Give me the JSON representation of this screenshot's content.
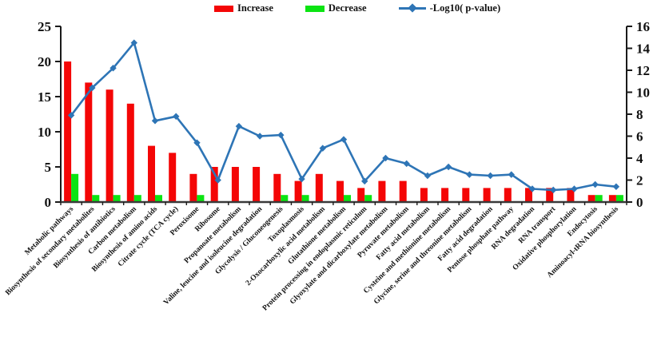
{
  "chart_data": {
    "type": "bar",
    "subtype": "combo-bar-line",
    "title": "",
    "xlabel": "",
    "ylabel_left": "",
    "ylabel_right": "",
    "grid": false,
    "legend_position": "top-center",
    "categories": [
      "Metabolic pathways",
      "Biosynthesis of secondary metabolites",
      "Biosynthesis of antibiotics",
      "Carbon metabolism",
      "Biosynthesis of amino acids",
      "Citrate cycle (TCA cycle)",
      "Peroxisome",
      "Ribosome",
      "Propanoate metabolism",
      "Valine, leucine and isoleucine degradation",
      "Glycolysis / Gluconeogenesis",
      "Toxoplasmosis",
      "2-Oxocarboxylic acid metabolism",
      "Glutathione metabolism",
      "Protein processing in endoplasmic reticulum",
      "Glyoxylate and dicarboxylate metabolism",
      "Pyruvate metabolism",
      "Fatty acid metabolism",
      "Cysteine and methionine metabolism",
      "Glycine, serine and threonine metabolism",
      "Fatty acid degradation",
      "Pentose phosphate pathway",
      "RNA degradation",
      "RNA transport",
      "Oxidative phosphorylation",
      "Endocytosis",
      "Aminoacyl-tRNA biosynthesis"
    ],
    "series": [
      {
        "name": "Increase",
        "type": "bar",
        "axis": "left",
        "color": "#f40606",
        "values": [
          20,
          17,
          16,
          14,
          8,
          7,
          4,
          5,
          5,
          5,
          4,
          3,
          4,
          3,
          2,
          3,
          3,
          2,
          2,
          2,
          2,
          2,
          2,
          2,
          2,
          1,
          1
        ]
      },
      {
        "name": "Decrease",
        "type": "bar",
        "axis": "left",
        "color": "#0be412",
        "values": [
          4,
          1,
          1,
          1,
          1,
          0,
          1,
          0,
          0,
          0,
          1,
          1,
          0,
          1,
          1,
          0,
          0,
          0,
          0,
          0,
          0,
          0,
          0,
          0,
          0,
          1,
          1
        ]
      },
      {
        "name": "-Log10( p-value)",
        "type": "line",
        "axis": "right",
        "color": "#2e75b6",
        "values": [
          7.9,
          10.4,
          12.2,
          14.5,
          7.4,
          7.8,
          5.4,
          2.0,
          6.9,
          6.0,
          6.1,
          2.1,
          4.9,
          5.7,
          1.9,
          4.0,
          3.5,
          2.4,
          3.2,
          2.5,
          2.4,
          2.5,
          1.2,
          1.1,
          1.2,
          1.6,
          1.4
        ]
      }
    ],
    "left_axis": {
      "range": [
        0,
        25
      ],
      "ticks": [
        0,
        5,
        10,
        15,
        20,
        25
      ]
    },
    "right_axis": {
      "range": [
        0,
        16
      ],
      "ticks": [
        0,
        2,
        4,
        6,
        8,
        10,
        12,
        14,
        16
      ]
    }
  }
}
